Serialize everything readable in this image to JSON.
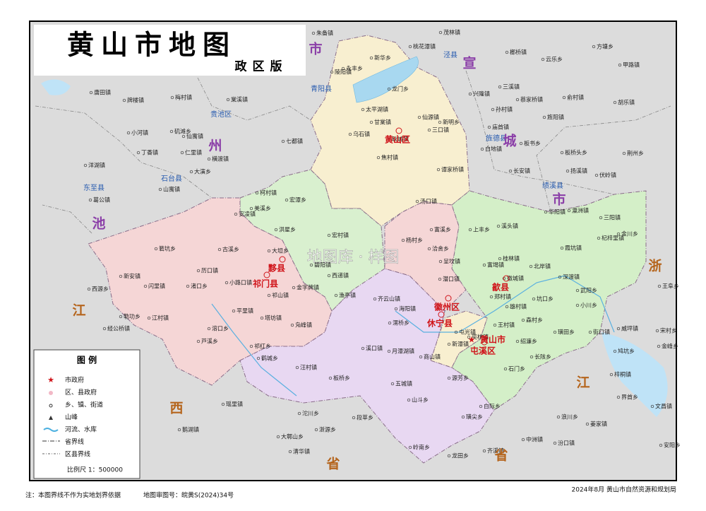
{
  "header": {
    "title": "黄山市地图",
    "subtitle": "政区版"
  },
  "legend": {
    "title": "图 例",
    "items": [
      "市政府",
      "区、县政府",
      "乡、镇、街道",
      "山峰",
      "河流、水库",
      "省界线",
      "区县界线"
    ],
    "scale": "比例尺 1：500000"
  },
  "districts": [
    "黄山区",
    "黟县",
    "祁门县",
    "休宁县",
    "徽州区",
    "歙县",
    "黄山市",
    "屯溪区"
  ],
  "neighbor_counties": [
    "青阳县",
    "贵池区",
    "石台县",
    "东至县",
    "泾县",
    "旌德县",
    "绩溪县"
  ],
  "neighbor_labels": [
    [
      "池",
      "州",
      "市"
    ],
    [
      "宣",
      "城",
      "市"
    ],
    [
      "浙",
      "江",
      "省"
    ],
    [
      "江",
      "西",
      "省"
    ]
  ],
  "towns": [
    "永丰乡",
    "新华乡",
    "龙门乡",
    "太平湖镇",
    "仙源镇",
    "甘棠镇",
    "新明乡",
    "三口镇",
    "乌石镇",
    "耿城镇",
    "焦村镇",
    "谭家桥镇",
    "汤口镇",
    "柯村镇",
    "宏潭乡",
    "美溪乡",
    "洪星乡",
    "宏村镇",
    "碧阳镇",
    "西递镇",
    "渔亭镇",
    "安凌镇",
    "古溪乡",
    "大坦乡",
    "历口镇",
    "小路口镇",
    "新安镇",
    "闪里镇",
    "箬坑乡",
    "渚口乡",
    "祁山镇",
    "金字牌镇",
    "平里镇",
    "塔坊镇",
    "溶口乡",
    "芦溪乡",
    "祁红乡",
    "凫峰镇",
    "齐云山镇",
    "海阳镇",
    "溪口镇",
    "月潭湖镇",
    "汪村镇",
    "鹤城乡",
    "板桥乡",
    "五城镇",
    "山斗乡",
    "商山镇",
    "渭桥乡",
    "富溪乡",
    "杨村乡",
    "洽舍乡",
    "呈坎镇",
    "潜口镇",
    "上丰乡",
    "富堨镇",
    "桂林镇",
    "徽城镇",
    "北岸镇",
    "雄村镇",
    "王村镇",
    "郑村镇",
    "坑口乡",
    "深渡镇",
    "霞坑镇",
    "杞梓里镇",
    "三阳镇",
    "金川乡",
    "溪头镇",
    "街口镇",
    "璜田乡",
    "小川乡",
    "武阳乡",
    "长陔乡",
    "石门乡",
    "绍濂乡",
    "森村乡",
    "新潭镇",
    "屯光镇",
    "奕棋镇",
    "源芳乡",
    "白际乡",
    "璜尖乡",
    "岭南乡",
    "齐溪镇",
    "龙田乡",
    "朱备镇",
    "陵阳镇",
    "茂林镇",
    "桃花潭镇",
    "榔桥镇",
    "云乐乡",
    "方塘乡",
    "甲路镇",
    "兴隆镇",
    "三溪镇",
    "蔡家桥镇",
    "俞村镇",
    "孙村镇",
    "旌阳镇",
    "胡乐镇",
    "庙首镇",
    "白地镇",
    "板书乡",
    "板桥头乡",
    "荆州乡",
    "长安镇",
    "扬溪镇",
    "伏岭镇",
    "华阳镇",
    "瀛洲镇",
    "唐田镇",
    "牌楼镇",
    "梅村镇",
    "棠溪镇",
    "七都镇",
    "仙寓镇",
    "小河镇",
    "矶滩乡",
    "丁香镇",
    "仁里镇",
    "横渡镇",
    "大演乡",
    "洋湖镇",
    "山寓镇",
    "葛公镇",
    "西源乡",
    "勒功乡",
    "江村镇",
    "经公桥镇",
    "瑶里镇",
    "沱川乡",
    "段莘乡",
    "鹅湖镇",
    "大鄣山乡",
    "浙源乡",
    "清华镇",
    "中洲镇",
    "浪川乡",
    "姜家镇",
    "汾口镇",
    "威坪镇",
    "宋村乡",
    "金峰乡",
    "鸠坑乡",
    "梓桐镇",
    "界首乡",
    "文昌镇",
    "安阳乡",
    "王阜乡"
  ],
  "watermark": "地图库 · 样图",
  "footer": {
    "note": "注：本图界线不作为实地划界依据",
    "approval": "地图审图号：皖黄S(2024)34号",
    "credit": "2024年8月  黄山市自然资源和规划局"
  }
}
